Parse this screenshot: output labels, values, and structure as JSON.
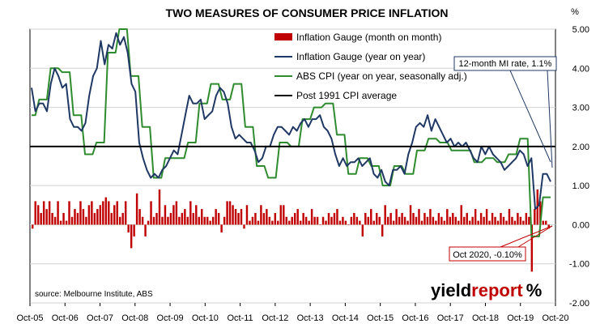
{
  "chart_data": {
    "type": "bar+line",
    "title": "TWO MEASURES OF CONSUMER PRICE INFLATION",
    "y_unit": "%",
    "ylim": [
      -2.0,
      5.0
    ],
    "y_ticks": [
      "5.00",
      "4.00",
      "3.00",
      "2.00",
      "1.00",
      "0.00",
      "-1.00",
      "-2.00"
    ],
    "y_tick_values": [
      5,
      4,
      3,
      2,
      1,
      0,
      -1,
      -2
    ],
    "x_ticks": [
      "Oct-05",
      "Oct-06",
      "Oct-07",
      "Oct-08",
      "Oct-09",
      "Oct-10",
      "Oct-11",
      "Oct-12",
      "Oct-13",
      "Oct-14",
      "Oct-15",
      "Oct-16",
      "Oct-17",
      "Oct-18",
      "Oct-19",
      "Oct-20"
    ],
    "grid": true,
    "legend_position": "top-center",
    "series": [
      {
        "name": "Inflation Gauge (month on month)",
        "kind": "bar",
        "color": "#c00000",
        "values": [
          -0.1,
          0.6,
          0.5,
          0.3,
          0.6,
          0.4,
          0.6,
          0.3,
          0.2,
          0.6,
          0.1,
          0.3,
          0.1,
          0.6,
          0.2,
          0.4,
          0.3,
          0.6,
          0.4,
          0.2,
          0.5,
          0.6,
          0.3,
          0.4,
          0.5,
          0.6,
          0.7,
          0.6,
          0.3,
          0.5,
          0.6,
          0.2,
          0.3,
          0.6,
          -0.2,
          -0.6,
          -0.3,
          0.8,
          0.4,
          0.2,
          -0.3,
          0.1,
          0.6,
          0.2,
          0.3,
          0.9,
          0.2,
          0.5,
          0.2,
          0.3,
          0.5,
          0.6,
          0.2,
          0.3,
          0.4,
          0.2,
          0.6,
          0.3,
          0.5,
          0.2,
          0.4,
          0.2,
          0.2,
          0.1,
          0.2,
          0.4,
          0.3,
          -0.2,
          0.2,
          0.6,
          0.6,
          0.5,
          0.4,
          0.3,
          0.4,
          -0.1,
          0.5,
          0.1,
          0.2,
          0.3,
          0.1,
          0.5,
          0.3,
          0.4,
          0.2,
          0.1,
          0.3,
          0.1,
          0.5,
          0.5,
          0.2,
          0.1,
          0.2,
          0.3,
          0.4,
          0.1,
          0.3,
          0.2,
          0.1,
          0.4,
          0.2,
          0.2,
          0.0,
          0.2,
          0.1,
          0.3,
          0.2,
          0.3,
          0.4,
          0.1,
          0.2,
          0.1,
          0.0,
          0.2,
          0.3,
          0.2,
          0.1,
          -0.3,
          0.3,
          0.2,
          0.4,
          0.1,
          0.3,
          0.2,
          -0.3,
          0.5,
          0.2,
          0.3,
          0.1,
          0.4,
          0.2,
          0.3,
          0.2,
          0.1,
          0.5,
          0.3,
          0.2,
          0.4,
          0.1,
          0.3,
          0.2,
          0.4,
          0.2,
          0.1,
          0.3,
          0.2,
          0.1,
          0.4,
          0.2,
          0.3,
          0.2,
          0.1,
          0.5,
          0.2,
          0.3,
          0.1,
          0.2,
          0.4,
          0.1,
          0.3,
          0.2,
          0.4,
          0.1,
          0.3,
          0.2,
          0.1,
          0.3,
          0.2,
          0.1,
          0.4,
          0.2,
          0.1,
          0.3,
          0.2,
          0.1,
          0.3,
          0.2,
          -1.2,
          0.4,
          0.9,
          0.6,
          0.1,
          0.1,
          -0.1
        ]
      },
      {
        "name": "Inflation Gauge (year on year)",
        "kind": "line",
        "color": "#1f3864",
        "values": [
          3.5,
          2.9,
          3.1,
          3.1,
          2.9,
          3.6,
          4.0,
          3.8,
          3.5,
          3.6,
          2.7,
          2.5,
          2.5,
          2.4,
          2.6,
          3.3,
          3.8,
          4.0,
          4.7,
          4.1,
          4.6,
          4.5,
          4.9,
          4.6,
          4.8,
          4.4,
          3.6,
          3.4,
          2.1,
          1.7,
          1.4,
          1.2,
          1.3,
          1.2,
          1.4,
          1.5,
          1.7,
          1.9,
          1.8,
          2.3,
          2.8,
          3.3,
          3.1,
          3.1,
          3.2,
          2.7,
          2.8,
          2.9,
          3.3,
          3.5,
          3.4,
          3.1,
          2.5,
          2.2,
          2.3,
          2.2,
          2.1,
          2.1,
          1.9,
          1.6,
          1.7,
          2.0,
          2.0,
          2.3,
          2.5,
          2.5,
          2.4,
          2.3,
          2.5,
          2.4,
          2.6,
          2.7,
          2.5,
          2.7,
          2.7,
          2.8,
          2.5,
          2.4,
          2.2,
          1.8,
          1.5,
          1.7,
          1.5,
          1.6,
          1.6,
          1.7,
          1.5,
          1.6,
          1.7,
          1.3,
          1.2,
          1.4,
          1.1,
          1.0,
          1.4,
          1.4,
          1.5,
          1.3,
          1.8,
          2.1,
          2.5,
          2.6,
          2.5,
          2.8,
          2.4,
          2.7,
          2.5,
          2.3,
          2.1,
          2.2,
          2.0,
          2.1,
          2.0,
          2.1,
          1.9,
          1.7,
          1.6,
          2.0,
          1.8,
          2.0,
          1.8,
          1.7,
          1.6,
          1.4,
          1.5,
          1.6,
          1.7,
          1.9,
          1.8,
          1.5,
          1.7,
          0.4,
          0.5,
          1.3,
          1.3,
          1.1
        ]
      },
      {
        "name": "ABS CPI (year on year, seasonally adj.)",
        "kind": "line",
        "color": "#2e8b2e",
        "values": [
          2.8,
          2.8,
          3.2,
          3.2,
          3.2,
          4.0,
          4.0,
          4.0,
          3.9,
          3.9,
          3.9,
          2.8,
          2.8,
          2.8,
          1.8,
          1.8,
          1.8,
          2.1,
          2.1,
          2.1,
          4.4,
          4.4,
          4.4,
          5.0,
          5.0,
          5.0,
          3.8,
          3.8,
          3.8,
          2.5,
          2.5,
          2.5,
          1.2,
          1.2,
          1.2,
          1.7,
          1.7,
          1.7,
          1.7,
          1.7,
          1.7,
          2.1,
          2.1,
          2.1,
          3.1,
          3.1,
          3.1,
          3.6,
          3.6,
          3.6,
          3.2,
          3.2,
          3.2,
          3.6,
          3.6,
          3.6,
          2.5,
          2.5,
          2.5,
          1.5,
          1.5,
          1.5,
          1.2,
          1.2,
          1.2,
          2.1,
          2.1,
          2.1,
          2.0,
          2.0,
          2.0,
          2.7,
          2.7,
          2.7,
          3.0,
          3.0,
          3.0,
          3.1,
          3.1,
          3.1,
          2.3,
          2.3,
          2.3,
          1.3,
          1.3,
          1.3,
          1.7,
          1.7,
          1.7,
          1.5,
          1.5,
          1.5,
          1.0,
          1.0,
          1.0,
          1.5,
          1.5,
          1.5,
          1.3,
          1.3,
          1.3,
          1.9,
          1.9,
          1.9,
          2.2,
          2.2,
          2.2,
          2.1,
          2.1,
          2.1,
          1.9,
          1.9,
          1.9,
          1.9,
          1.9,
          1.9,
          1.6,
          1.6,
          1.6,
          1.7,
          1.7,
          1.7,
          1.6,
          1.6,
          1.6,
          1.8,
          1.8,
          1.8,
          2.2,
          2.2,
          2.2,
          -0.3,
          -0.3,
          -0.3,
          0.7,
          0.7,
          0.7
        ]
      },
      {
        "name": "Post 1991 CPI average",
        "kind": "hline",
        "color": "#000000",
        "value": 2.0
      }
    ],
    "annotations": [
      {
        "text": "12-month MI rate, 1.1%"
      },
      {
        "text": "Oct 2020, -0.10%"
      }
    ],
    "source": "source: Melbourne Institute, ABS"
  },
  "logo": {
    "part1": "yield",
    "part2": "report",
    "mark": "%"
  }
}
